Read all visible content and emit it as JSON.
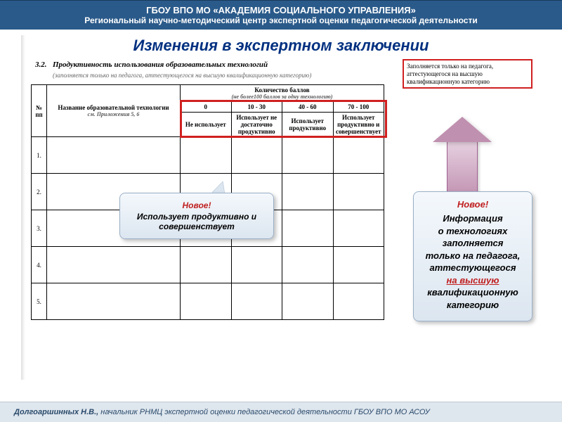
{
  "header": {
    "title": "ГБОУ ВПО МО «АКАДЕМИЯ СОЦИАЛЬНОГО УПРАВЛЕНИЯ»",
    "sub": "Региональный научно-методический центр экспертной оценки педагогической деятельности"
  },
  "title": "Изменения в экспертном заключении",
  "section": {
    "num": "3.2.",
    "name": "Продуктивность использования образовательных технологий",
    "note": "(заполняется только на педагога, аттестующегося на высшую квалификационную категорию)"
  },
  "note_box": "Заполняется только на педагога, аттестующегося на высшую квалификационную категорию",
  "table": {
    "col_num": "№ пп",
    "col_name": "Название образовательной технологии",
    "col_name_note": "см. Приложения 5, 6",
    "col_score": "Количество баллов",
    "col_score_note": "(не более100 баллов за одну технологию)",
    "score_cols": [
      "0",
      "10 - 30",
      "40 - 60",
      "70 - 100"
    ],
    "score_labels": [
      "Не использует",
      "Использует не достаточно продуктивно",
      "Использует продуктивно",
      "Использует продуктивно и совершенствует"
    ],
    "rows": [
      "1.",
      "2.",
      "3.",
      "4.",
      "5."
    ]
  },
  "callout1": {
    "new": "Новое!",
    "body": "Использует продуктивно и совершенствует"
  },
  "callout2": {
    "new": "Новое!",
    "l1": "Информация",
    "l2": "о технологиях",
    "l3": "заполняется",
    "l4": "только на педагога,",
    "l5": "аттестующегося",
    "l6": "на высшую",
    "l7": "квалификационную",
    "l8": "категорию"
  },
  "footer": {
    "author": "Долгоаршинных Н.В., ",
    "role": "начальник РНМЦ экспертной оценки педагогической деятельности ГБОУ ВПО МО АСОУ"
  }
}
